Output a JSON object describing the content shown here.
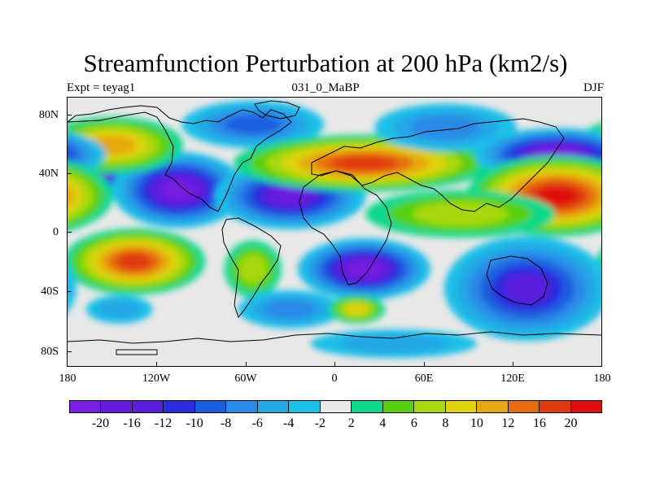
{
  "figure": {
    "title": "Streamfunction Perturbation at 200 hPa (km2/s)",
    "left_string": "Expt = teyag1",
    "center_string": "031_0_MaBP",
    "right_string": "DJF"
  },
  "axes": {
    "lat_labels": [
      "80N",
      "40N",
      "0",
      "40S",
      "80S"
    ],
    "lon_labels": [
      "180",
      "120W",
      "60W",
      "0",
      "60E",
      "120E",
      "180"
    ],
    "lat_range": [
      -90,
      90
    ],
    "lon_range": [
      -180,
      180
    ]
  },
  "colorbar": {
    "labels": [
      "-20",
      "-16",
      "-12",
      "-10",
      "-8",
      "-6",
      "-4",
      "-2",
      "2",
      "4",
      "6",
      "8",
      "10",
      "12",
      "16",
      "20"
    ],
    "colors": [
      "#7a1fe0",
      "#6a1ae0",
      "#5a1cdd",
      "#2c2ce0",
      "#1a5fe0",
      "#2a8ae8",
      "#23a8e6",
      "#1ec0e8",
      "#e8e8e8",
      "#10d88c",
      "#58d010",
      "#a8d810",
      "#e0d20c",
      "#e6a810",
      "#e66c10",
      "#e03a10",
      "#e00e0e"
    ]
  },
  "map_data": {
    "type": "filled-contour",
    "variable": "streamfunction perturbation at 200 hPa",
    "units": "km2/s",
    "features": [
      {
        "name": "n-pacific-low",
        "lon": -160,
        "lat": 42,
        "rlon": 22,
        "rlat": 12,
        "value": -18
      },
      {
        "name": "n-america-low",
        "lon": -105,
        "lat": 28,
        "rlon": 28,
        "rlat": 16,
        "value": -20
      },
      {
        "name": "atlantic-low",
        "lon": -30,
        "lat": 24,
        "rlon": 32,
        "rlat": 14,
        "value": -18
      },
      {
        "name": "arctic-low",
        "lon": -55,
        "lat": 72,
        "rlon": 30,
        "rlat": 10,
        "value": -8
      },
      {
        "name": "pacific-high",
        "lon": -150,
        "lat": 58,
        "rlon": 30,
        "rlat": 12,
        "value": 10
      },
      {
        "name": "dateline-high",
        "lon": -180,
        "lat": 22,
        "rlon": 10,
        "rlat": 12,
        "value": 20
      },
      {
        "name": "eurasia-high",
        "lon": 20,
        "lat": 46,
        "rlon": 55,
        "rlat": 12,
        "value": 18
      },
      {
        "name": "central-asia-low",
        "lon": 75,
        "lat": 70,
        "rlon": 30,
        "rlat": 10,
        "value": -6
      },
      {
        "name": "siberia-low",
        "lon": 150,
        "lat": 52,
        "rlon": 35,
        "rlat": 11,
        "value": -20
      },
      {
        "name": "w-pacific-high",
        "lon": 150,
        "lat": 24,
        "rlon": 38,
        "rlat": 17,
        "value": 20
      },
      {
        "name": "s-pacific-high",
        "lon": -135,
        "lat": -20,
        "rlon": 30,
        "rlat": 14,
        "value": 18
      },
      {
        "name": "s-africa-low",
        "lon": 20,
        "lat": -25,
        "rlon": 28,
        "rlat": 13,
        "value": -20
      },
      {
        "name": "australia-low",
        "lon": 130,
        "lat": -38,
        "rlon": 35,
        "rlat": 22,
        "value": -12
      },
      {
        "name": "s-america-high",
        "lon": -55,
        "lat": -25,
        "rlon": 12,
        "rlat": 12,
        "value": 6
      },
      {
        "name": "s-indian-high",
        "lon": 85,
        "lat": 12,
        "rlon": 40,
        "rlat": 10,
        "value": 6
      },
      {
        "name": "s-atlantic-low",
        "lon": -30,
        "lat": -52,
        "rlon": 22,
        "rlat": 8,
        "value": -6
      },
      {
        "name": "antarctic-low",
        "lon": 40,
        "lat": -75,
        "rlon": 35,
        "rlat": 6,
        "value": -4
      },
      {
        "name": "s-ocean-low",
        "lon": -145,
        "lat": -52,
        "rlon": 14,
        "rlat": 6,
        "value": -4
      },
      {
        "name": "w-africa-high",
        "lon": 15,
        "lat": -52,
        "rlon": 12,
        "rlat": 6,
        "value": 8
      }
    ]
  }
}
